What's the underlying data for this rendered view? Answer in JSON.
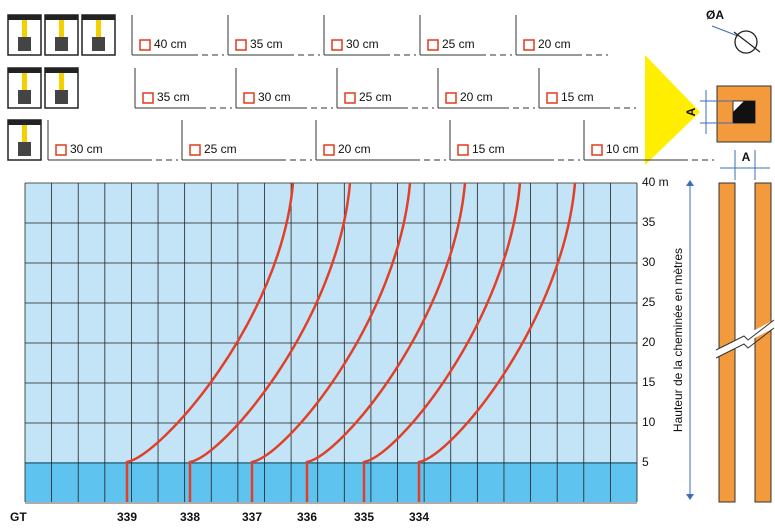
{
  "section_rows": [
    [
      "40 cm",
      "35 cm",
      "30 cm",
      "25 cm",
      "20 cm"
    ],
    [
      "35 cm",
      "30 cm",
      "25 cm",
      "20 cm",
      "15 cm"
    ],
    [
      "30 cm",
      "25 cm",
      "20 cm",
      "15 cm",
      "10 cm"
    ]
  ],
  "height_axis": {
    "ticks": [
      "40 m",
      "35",
      "30",
      "25",
      "20",
      "15",
      "10",
      "5"
    ],
    "title": "Hauteur de la cheminée en mètres"
  },
  "models": {
    "label": "GT",
    "items": [
      "339",
      "338",
      "337",
      "336",
      "335",
      "334"
    ]
  },
  "dimension_labels": {
    "diameter": "ØA",
    "side": "A",
    "side_width": "A"
  }
}
